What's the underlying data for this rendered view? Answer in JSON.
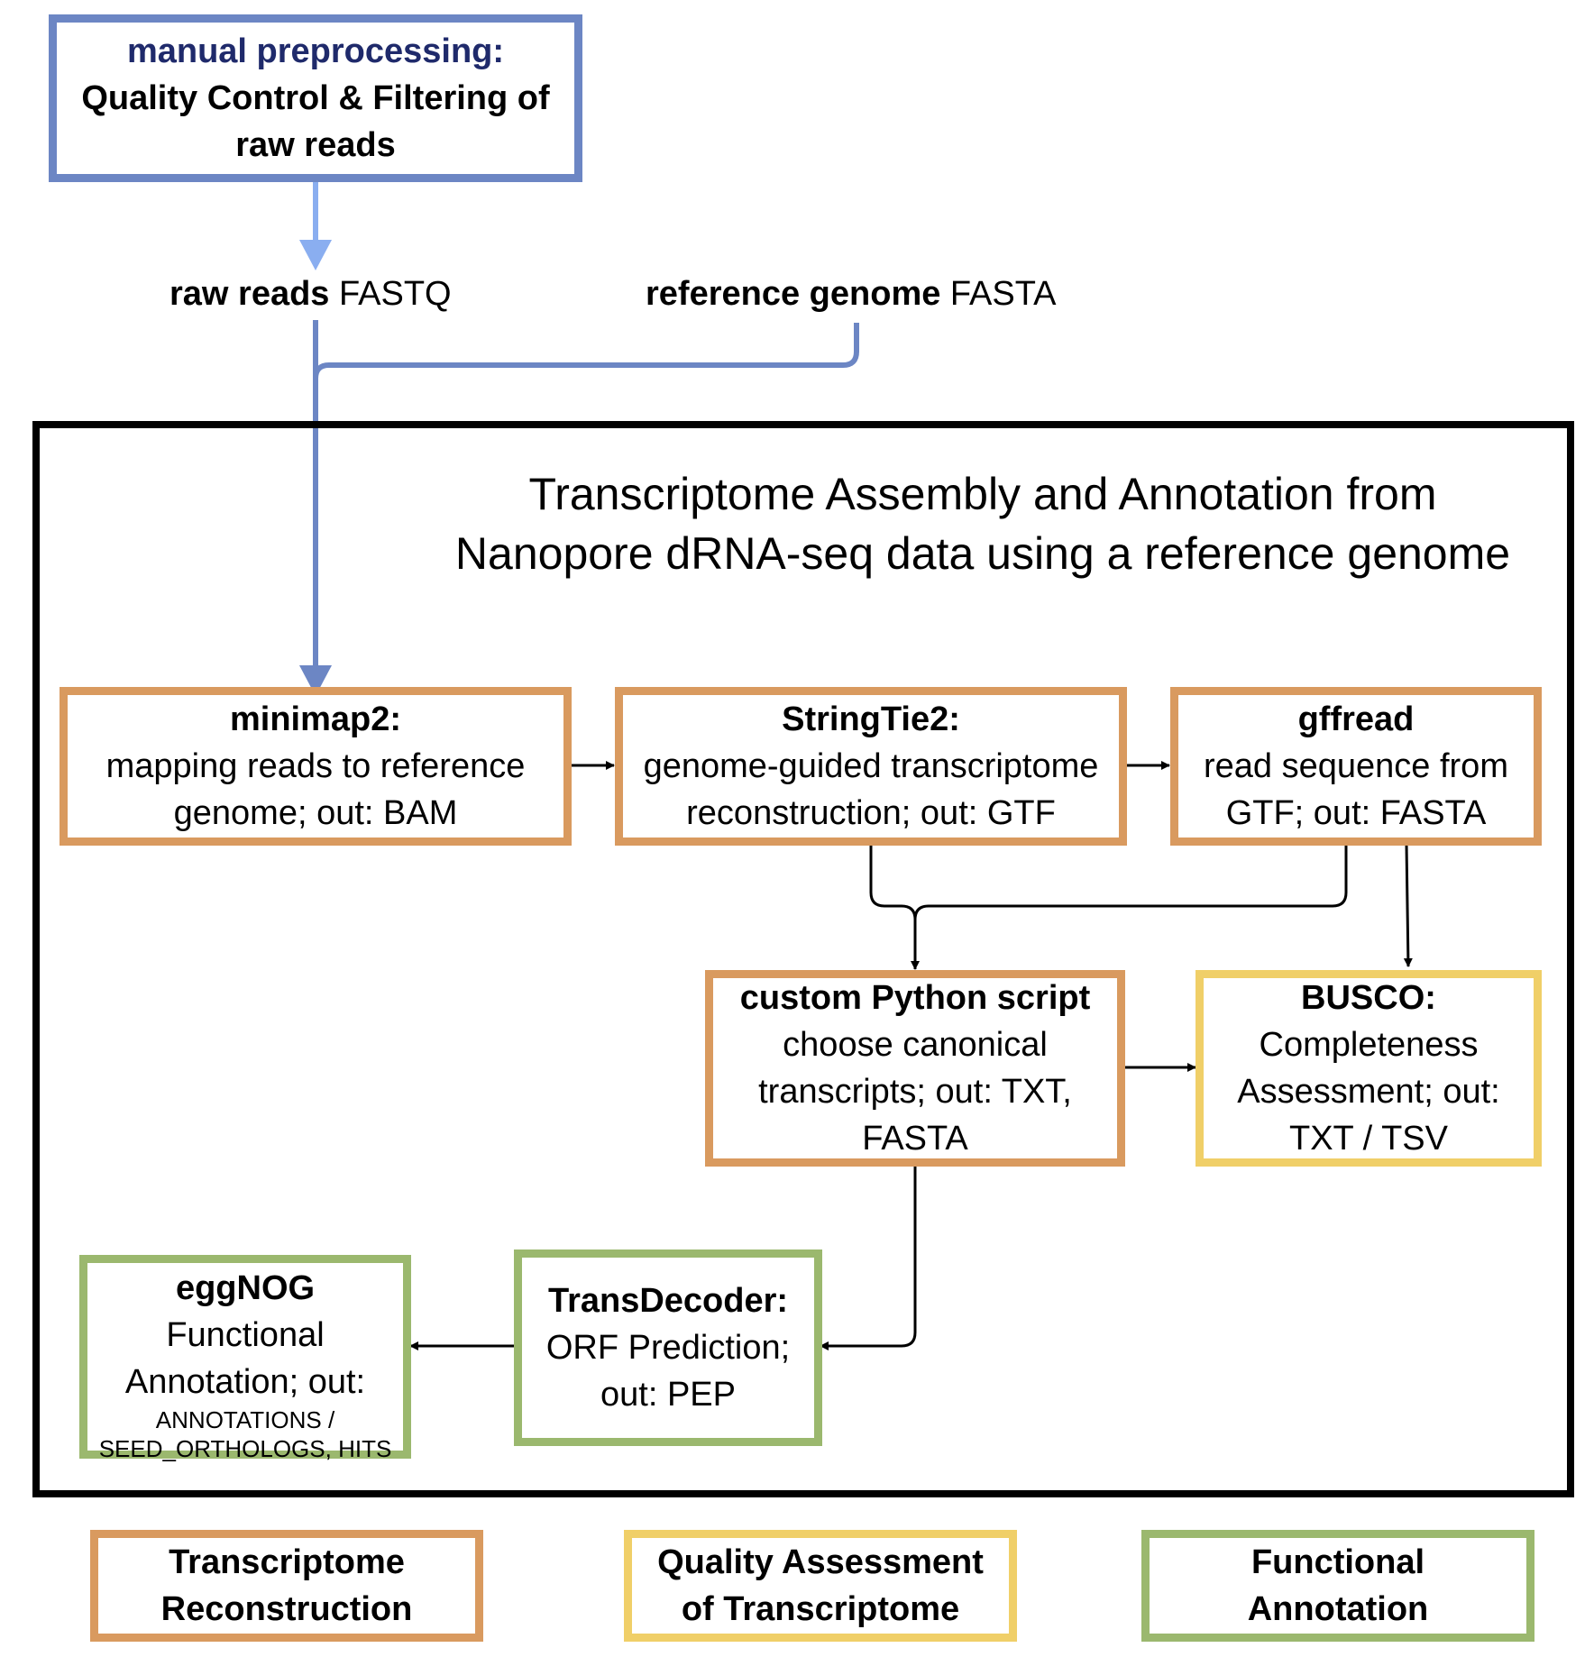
{
  "preprocess": {
    "line1": "manual preprocessing:",
    "line2": "Quality Control & Filtering of",
    "line3": "raw reads"
  },
  "inputs": {
    "raw_reads_bold": "raw reads",
    "raw_reads_fmt": " FASTQ",
    "ref_bold": "reference genome",
    "ref_fmt": " FASTA"
  },
  "title": {
    "line1": "Transcriptome Assembly and Annotation from",
    "line2": "Nanopore dRNA-seq data using a reference genome"
  },
  "boxes": {
    "minimap2": {
      "name": "minimap2:",
      "l1": "mapping reads to reference",
      "l2": "genome; out: BAM"
    },
    "stringtie2": {
      "name": "StringTie2:",
      "l1": "genome-guided transcriptome",
      "l2": "reconstruction; out: GTF"
    },
    "gffread": {
      "name": "gffread",
      "l1": "read sequence from",
      "l2": "GTF; out: FASTA"
    },
    "python": {
      "name": "custom Python script",
      "l1": "choose canonical",
      "l2": "transcripts; out: TXT,",
      "l3": "FASTA"
    },
    "busco": {
      "name": "BUSCO:",
      "l1": "Completeness",
      "l2": "Assessment; out:",
      "l3": "TXT / TSV"
    },
    "transdecoder": {
      "name": "TransDecoder:",
      "l1": "ORF Prediction;",
      "l2": "out: PEP"
    },
    "eggnog": {
      "name": "eggNOG",
      "l1": "Functional",
      "l2": "Annotation; out:",
      "l3": "ANNOTATIONS /",
      "l4": "SEED_ORTHOLOGS, HITS"
    }
  },
  "legend": {
    "reconstruction": {
      "l1": "Transcriptome",
      "l2": "Reconstruction"
    },
    "quality": {
      "l1": "Quality Assessment",
      "l2": "of Transcriptome"
    },
    "functional": {
      "l1": "Functional",
      "l2": "Annotation"
    }
  },
  "colors": {
    "reconstruction": "#d99a5f",
    "quality": "#f0cf68",
    "functional": "#9bb86e",
    "preprocessing": "#6c86c4",
    "preprocessing_arrow": "#8aaef0"
  }
}
